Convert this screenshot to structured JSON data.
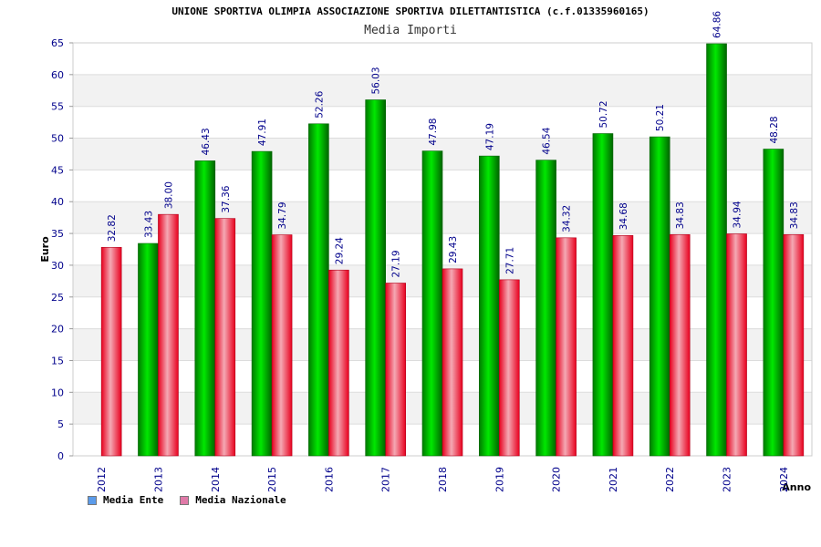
{
  "chart_data": {
    "type": "bar",
    "title": "UNIONE SPORTIVA OLIMPIA ASSOCIAZIONE SPORTIVA DILETTANTISTICA (c.f.01335960165)",
    "subtitle": "Media Importi",
    "xlabel": "Anno",
    "ylabel": "Euro",
    "ylim": [
      0,
      65
    ],
    "yticks": [
      0,
      5,
      10,
      15,
      20,
      25,
      30,
      35,
      40,
      45,
      50,
      55,
      60,
      65
    ],
    "ytick_labels": [
      "0",
      "5",
      "10",
      "15",
      "20",
      "25",
      "30",
      "35",
      "40",
      "45",
      "50",
      "55",
      "60",
      "65"
    ],
    "grid": true,
    "legend_position": "bottom-left",
    "categories": [
      "2012",
      "2013",
      "2014",
      "2015",
      "2016",
      "2017",
      "2018",
      "2019",
      "2020",
      "2021",
      "2022",
      "2023",
      "2024"
    ],
    "series": [
      {
        "name": "Media Ente",
        "legend_color": "#5b9bea",
        "bar_color": "#00b400",
        "values": [
          null,
          33.43,
          46.43,
          47.91,
          52.26,
          56.03,
          47.98,
          47.19,
          46.54,
          50.72,
          50.21,
          64.86,
          48.28
        ],
        "labels": [
          "",
          "33.43",
          "46.43",
          "47.91",
          "52.26",
          "56.03",
          "47.98",
          "47.19",
          "46.54",
          "50.72",
          "50.21",
          "64.86",
          "48.28"
        ]
      },
      {
        "name": "Media Nazionale",
        "legend_color": "#e07aa8",
        "bar_color": "#e8001e",
        "values": [
          32.82,
          38.0,
          37.36,
          34.79,
          29.24,
          27.19,
          29.43,
          27.71,
          34.32,
          34.68,
          34.83,
          34.94,
          34.83
        ],
        "labels": [
          "32.82",
          "38.00",
          "37.36",
          "34.79",
          "29.24",
          "27.19",
          "29.43",
          "27.71",
          "34.32",
          "34.68",
          "34.83",
          "34.94",
          "34.83"
        ]
      }
    ]
  }
}
